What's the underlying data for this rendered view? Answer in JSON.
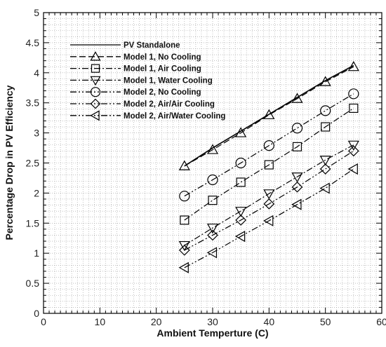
{
  "chart_data": {
    "type": "line",
    "xlabel": "Ambient Temperture (C)",
    "ylabel": "Percentage Drop in PV Efficiency",
    "xlim": [
      0,
      60
    ],
    "ylim": [
      0,
      5
    ],
    "xticks": [
      0,
      10,
      20,
      30,
      40,
      50,
      60
    ],
    "yticks": [
      0,
      0.5,
      1,
      1.5,
      2,
      2.5,
      3,
      3.5,
      4,
      4.5,
      5
    ],
    "grid": true,
    "legend_position": "top-left",
    "x": [
      25,
      30,
      35,
      40,
      45,
      50,
      55
    ],
    "series": [
      {
        "name": "PV Standalone",
        "marker": "none",
        "dash": "solid",
        "values": [
          2.45,
          2.75,
          3.03,
          3.31,
          3.59,
          3.87,
          4.12
        ]
      },
      {
        "name": "Model 1, No Cooling",
        "marker": "triangle-up",
        "dash": "dashed",
        "values": [
          2.45,
          2.72,
          3.0,
          3.3,
          3.57,
          3.85,
          4.1
        ]
      },
      {
        "name": "Model 1, Air Cooling",
        "marker": "square",
        "dash": "dashdot",
        "values": [
          1.55,
          1.88,
          2.18,
          2.47,
          2.77,
          3.1,
          3.41
        ]
      },
      {
        "name": "Model 1, Water Cooling",
        "marker": "triangle-down",
        "dash": "dashdot",
        "values": [
          1.13,
          1.42,
          1.7,
          1.99,
          2.27,
          2.55,
          2.8
        ]
      },
      {
        "name": "Model 2, No Cooling",
        "marker": "circle",
        "dash": "dashdotdot",
        "values": [
          1.95,
          2.22,
          2.5,
          2.79,
          3.08,
          3.37,
          3.65
        ]
      },
      {
        "name": "Model 2, Air/Air Cooling",
        "marker": "diamond",
        "dash": "dashdotdot",
        "values": [
          1.05,
          1.3,
          1.55,
          1.82,
          2.1,
          2.4,
          2.7
        ]
      },
      {
        "name": "Model 2, Air/Water Cooling",
        "marker": "triangle-left",
        "dash": "dashdotdot",
        "values": [
          0.76,
          1.01,
          1.28,
          1.54,
          1.81,
          2.08,
          2.4
        ]
      }
    ]
  }
}
